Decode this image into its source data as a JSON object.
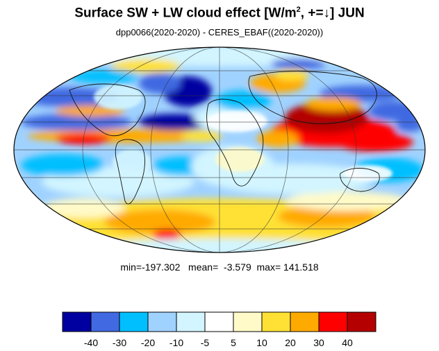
{
  "title": {
    "main": "Surface SW + LW cloud effect [W/m",
    "sup": "2",
    "rest": ", +=↓]  JUN"
  },
  "subtitle": "dpp0066(2020-2020) - CERES_EBAF((2020-2020))",
  "stats": {
    "min_label": "min=",
    "min": "-197.302",
    "mean_label": "mean=",
    "mean": "-3.579",
    "max_label": "max=",
    "max": "141.518"
  },
  "map": {
    "projection": "mollweide",
    "graticule": true
  },
  "colorbar": {
    "colors": [
      "#0000a0",
      "#4169e1",
      "#00bfff",
      "#a0d2ff",
      "#d2f5ff",
      "#ffffff",
      "#fffac8",
      "#ffe135",
      "#ffaa00",
      "#ff0000",
      "#b40000"
    ],
    "labels": [
      "-40",
      "-30",
      "-20",
      "-10",
      "-5",
      "5",
      "10",
      "20",
      "30",
      "40"
    ]
  }
}
